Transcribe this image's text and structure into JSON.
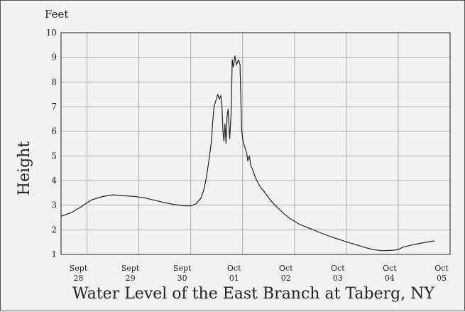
{
  "chart_data": {
    "type": "line",
    "title": "Water Level of the East Branch at Taberg, NY",
    "unit_label": "Feet",
    "ylabel": "Height",
    "xlabel": "",
    "ylim": [
      1,
      10
    ],
    "yticks": [
      "1",
      "2",
      "3",
      "4",
      "5",
      "6",
      "7",
      "8",
      "9",
      "10"
    ],
    "xlim": [
      0,
      7.5
    ],
    "xticks": [
      {
        "x": 0.5,
        "line1": "Sept",
        "line2": "28"
      },
      {
        "x": 1.5,
        "line1": "Sept",
        "line2": "29"
      },
      {
        "x": 2.5,
        "line1": "Sept",
        "line2": "30"
      },
      {
        "x": 3.5,
        "line1": "Oct",
        "line2": "01"
      },
      {
        "x": 4.5,
        "line1": "Oct",
        "line2": "02"
      },
      {
        "x": 5.5,
        "line1": "Oct",
        "line2": "03"
      },
      {
        "x": 6.5,
        "line1": "Oct",
        "line2": "04"
      },
      {
        "x": 7.5,
        "line1": "Oct",
        "line2": "05"
      }
    ],
    "grid": true,
    "line_color": "#222222",
    "series": [
      {
        "x": [
          0.0,
          0.2,
          0.4,
          0.5,
          0.6,
          0.8,
          1.0,
          1.2,
          1.4,
          1.6,
          1.8,
          2.0,
          2.2,
          2.4,
          2.5,
          2.6,
          2.7,
          2.75,
          2.8,
          2.85,
          2.9,
          2.92,
          2.95,
          3.0,
          3.02,
          3.05,
          3.08,
          3.1,
          3.12,
          3.14,
          3.16,
          3.18,
          3.2,
          3.22,
          3.25,
          3.28,
          3.3,
          3.32,
          3.35,
          3.38,
          3.42,
          3.45,
          3.48,
          3.5,
          3.52,
          3.55,
          3.58,
          3.6,
          3.63,
          3.66,
          3.7,
          3.75,
          3.8,
          3.85,
          3.9,
          4.0,
          4.1,
          4.2,
          4.3,
          4.4,
          4.5,
          4.6,
          4.8,
          5.0,
          5.2,
          5.4,
          5.6,
          5.8,
          6.0,
          6.2,
          6.4,
          6.5,
          6.6,
          6.8,
          7.0,
          7.2
        ],
        "y": [
          2.55,
          2.7,
          2.95,
          3.1,
          3.22,
          3.35,
          3.42,
          3.38,
          3.36,
          3.3,
          3.2,
          3.1,
          3.02,
          2.97,
          2.97,
          3.05,
          3.3,
          3.6,
          4.1,
          4.8,
          5.6,
          6.3,
          7.0,
          7.35,
          7.5,
          7.3,
          7.45,
          7.1,
          6.0,
          5.6,
          6.3,
          5.5,
          6.6,
          6.9,
          5.7,
          6.8,
          8.9,
          8.6,
          9.05,
          8.7,
          8.9,
          8.7,
          6.1,
          5.7,
          5.5,
          5.3,
          5.1,
          4.8,
          5.0,
          4.6,
          4.4,
          4.1,
          3.9,
          3.7,
          3.6,
          3.3,
          3.05,
          2.85,
          2.65,
          2.48,
          2.35,
          2.22,
          2.05,
          1.88,
          1.72,
          1.58,
          1.45,
          1.32,
          1.2,
          1.15,
          1.17,
          1.2,
          1.3,
          1.4,
          1.48,
          1.55
        ]
      }
    ]
  }
}
